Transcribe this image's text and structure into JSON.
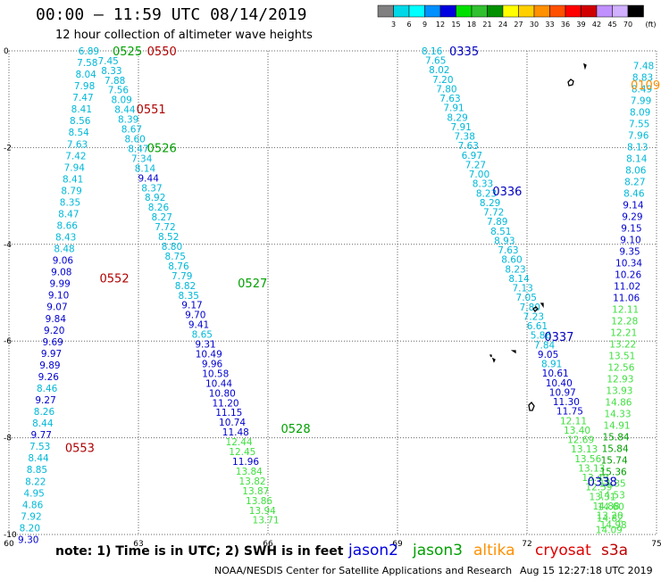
{
  "title": "00:00 – 11:59 UTC 08/14/2019",
  "subtitle": "12 hour collection of altimeter wave heights",
  "note": "note: 1) Time is in UTC; 2) SWH is in feet",
  "footer": "NOAA/NESDIS Center for Satellite Applications and Research",
  "footer_date": "Aug 15 12:27:18 UTC 2019",
  "colorbar": {
    "unit": "(ft)",
    "ticks": [
      "3",
      "6",
      "9",
      "12",
      "15",
      "18",
      "21",
      "24",
      "27",
      "30",
      "33",
      "36",
      "39",
      "42",
      "45",
      "70"
    ],
    "colors": [
      "#808080",
      "#00d8e8",
      "#00ffff",
      "#0090ff",
      "#0000e0",
      "#00e000",
      "#30c030",
      "#009000",
      "#ffff00",
      "#ffd000",
      "#ff9000",
      "#ff5000",
      "#ff0000",
      "#d00000",
      "#c090ff",
      "#d0b0ff",
      "#000000"
    ]
  },
  "satellites": [
    {
      "name": "jason2",
      "color": "#0000e0"
    },
    {
      "name": "jason3",
      "color": "#00a000"
    },
    {
      "name": "altika",
      "color": "#ff9000"
    },
    {
      "name": "cryosat",
      "color": "#e00000"
    },
    {
      "name": "s3a",
      "color": "#c00000"
    }
  ],
  "axes": {
    "lon_ticks": [
      60,
      63,
      66,
      69,
      72,
      75
    ],
    "lat_ticks": [
      0,
      -2,
      -4,
      -6,
      -8,
      -10
    ],
    "lat_labels": [
      "0",
      "-2",
      "-4",
      "-6",
      "-8",
      "-10"
    ]
  },
  "pass_labels": [
    {
      "text": "0525",
      "lon": 62.4,
      "lat": 0.0,
      "color": "#00a000"
    },
    {
      "text": "0550",
      "lon": 63.2,
      "lat": 0.0,
      "color": "#b00000"
    },
    {
      "text": "0551",
      "lon": 62.95,
      "lat": -1.2,
      "color": "#b00000"
    },
    {
      "text": "0526",
      "lon": 63.2,
      "lat": -2.0,
      "color": "#00a000"
    },
    {
      "text": "0552",
      "lon": 62.1,
      "lat": -4.7,
      "color": "#b00000"
    },
    {
      "text": "0527",
      "lon": 65.3,
      "lat": -4.8,
      "color": "#00a000"
    },
    {
      "text": "0528",
      "lon": 66.3,
      "lat": -7.8,
      "color": "#00a000"
    },
    {
      "text": "0553",
      "lon": 61.3,
      "lat": -8.2,
      "color": "#b00000"
    },
    {
      "text": "0335",
      "lon": 70.2,
      "lat": 0.0,
      "color": "#0000c0"
    },
    {
      "text": "0336",
      "lon": 71.2,
      "lat": -2.9,
      "color": "#0000c0"
    },
    {
      "text": "0337",
      "lon": 72.4,
      "lat": -5.9,
      "color": "#0000c0"
    },
    {
      "text": "0338",
      "lon": 73.4,
      "lat": -8.9,
      "color": "#0000c0"
    },
    {
      "text": "0109",
      "lon": 74.4,
      "lat": -0.7,
      "color": "#ff9000"
    }
  ],
  "tracks": [
    {
      "name": "track-a",
      "lon0": 61.85,
      "lat0": 0.0,
      "lon1": 60.45,
      "lat1": -10.1,
      "values": [
        "6.89",
        "7.58",
        "8.04",
        "7.98",
        "7.47",
        "8.41",
        "8.56",
        "8.54",
        "7.63",
        "7.42",
        "7.94",
        "8.41",
        "8.79",
        "8.35",
        "8.47",
        "8.66",
        "8.43",
        "8.48",
        "9.06",
        "9.08",
        "9.99",
        "9.10",
        "9.07",
        "9.84",
        "9.20",
        "9.69",
        "9.97",
        "9.89",
        "9.26",
        "8.46",
        "9.27",
        "8.26",
        "8.44",
        "9.77",
        "7.53",
        "8.44",
        "8.85",
        "8.22",
        "4.95",
        "4.86",
        "7.92",
        "8.20",
        "9.30"
      ],
      "colors": [
        "#00b8d8",
        "#00b8d8",
        "#00b8d8",
        "#00b8d8",
        "#00b8d8",
        "#00b8d8",
        "#00b8d8",
        "#00b8d8",
        "#00b8d8",
        "#00b8d8",
        "#00b8d8",
        "#00b8d8",
        "#00b8d8",
        "#00b8d8",
        "#00b8d8",
        "#00b8d8",
        "#00b8d8",
        "#00b8d8",
        "#0000d0",
        "#0000d0",
        "#0000d0",
        "#0000d0",
        "#0000d0",
        "#0000d0",
        "#0000d0",
        "#0000d0",
        "#0000d0",
        "#0000d0",
        "#0000d0",
        "#00b8d8",
        "#0000d0",
        "#00b8d8",
        "#00b8d8",
        "#0000d0",
        "#00b8d8",
        "#00b8d8",
        "#00b8d8",
        "#00b8d8",
        "#00b8d8",
        "#00b8d8",
        "#00b8d8",
        "#00b8d8",
        "#0000d0"
      ]
    },
    {
      "name": "track-b",
      "lon0": 62.3,
      "lat0": -0.2,
      "lon1": 65.95,
      "lat1": -9.7,
      "values": [
        "7.45",
        "8.33",
        "7.88",
        "7.56",
        "8.09",
        "8.44",
        "8.39",
        "8.67",
        "8.60",
        "8.47",
        "7.34",
        "8.14",
        "9.44",
        "8.37",
        "8.92",
        "8.26",
        "8.27",
        "7.72",
        "8.52",
        "8.80",
        "8.75",
        "8.76",
        "7.79",
        "8.82",
        "8.35",
        "9.17",
        "9.70",
        "9.41",
        "8.65",
        "9.31",
        "10.49",
        "9.96",
        "10.58",
        "10.44",
        "10.80",
        "11.20",
        "11.15",
        "10.74",
        "11.48",
        "12.44",
        "12.45",
        "11.96",
        "13.84",
        "13.82",
        "13.87",
        "13.86",
        "13.94",
        "13.71"
      ],
      "colors": [
        "#00b8d8",
        "#00b8d8",
        "#00b8d8",
        "#00b8d8",
        "#00b8d8",
        "#00b8d8",
        "#00b8d8",
        "#00b8d8",
        "#00b8d8",
        "#00b8d8",
        "#00b8d8",
        "#00b8d8",
        "#0000d0",
        "#00b8d8",
        "#00b8d8",
        "#00b8d8",
        "#00b8d8",
        "#00b8d8",
        "#00b8d8",
        "#00b8d8",
        "#00b8d8",
        "#00b8d8",
        "#00b8d8",
        "#00b8d8",
        "#00b8d8",
        "#0000d0",
        "#0000d0",
        "#0000d0",
        "#00b8d8",
        "#0000d0",
        "#0000d0",
        "#0000d0",
        "#0000d0",
        "#0000d0",
        "#0000d0",
        "#0000d0",
        "#0000d0",
        "#0000d0",
        "#0000d0",
        "#40e040",
        "#40e040",
        "#0000d0",
        "#40e040",
        "#40e040",
        "#40e040",
        "#40e040",
        "#40e040",
        "#40e040"
      ]
    },
    {
      "name": "track-c",
      "lon0": 69.8,
      "lat0": 0.0,
      "lon1": 74.0,
      "lat1": -9.8,
      "values": [
        "8.16",
        "7.65",
        "8.02",
        "7.20",
        "7.80",
        "7.63",
        "7.91",
        "8.29",
        "7.91",
        "7.38",
        "7.63",
        "6.97",
        "7.27",
        "7.00",
        "8.33",
        "8.23",
        "8.29",
        "7.72",
        "7.89",
        "8.51",
        "8.93",
        "7.63",
        "8.60",
        "8.23",
        "8.14",
        "7.13",
        "7.05",
        "7.80",
        "7.23",
        "6.61",
        "5.86",
        "7.84",
        "9.05",
        "8.91",
        "10.61",
        "10.40",
        "10.97",
        "11.30",
        "11.75",
        "12.11",
        "13.40",
        "12.69",
        "13.13",
        "13.56",
        "13.13",
        "13.49",
        "12.59",
        "13.31",
        "14.88",
        "13.20",
        "14.98"
      ],
      "colors": [
        "#00b8d8",
        "#00b8d8",
        "#00b8d8",
        "#00b8d8",
        "#00b8d8",
        "#00b8d8",
        "#00b8d8",
        "#00b8d8",
        "#00b8d8",
        "#00b8d8",
        "#00b8d8",
        "#00b8d8",
        "#00b8d8",
        "#00b8d8",
        "#00b8d8",
        "#00b8d8",
        "#00b8d8",
        "#00b8d8",
        "#00b8d8",
        "#00b8d8",
        "#00b8d8",
        "#00b8d8",
        "#00b8d8",
        "#00b8d8",
        "#00b8d8",
        "#00b8d8",
        "#00b8d8",
        "#00b8d8",
        "#00b8d8",
        "#00b8d8",
        "#00b8d8",
        "#00b8d8",
        "#0000d0",
        "#00b8d8",
        "#0000d0",
        "#0000d0",
        "#0000d0",
        "#0000d0",
        "#0000d0",
        "#40e040",
        "#40e040",
        "#40e040",
        "#40e040",
        "#40e040",
        "#40e040",
        "#40e040",
        "#40e040",
        "#40e040",
        "#40e040",
        "#40e040",
        "#40e040"
      ]
    },
    {
      "name": "track-d",
      "lon0": 74.7,
      "lat0": -0.3,
      "lon1": 73.9,
      "lat1": -9.9,
      "values": [
        "7.48",
        "8.83",
        "8.49",
        "7.99",
        "8.09",
        "7.55",
        "7.96",
        "8.13",
        "8.14",
        "8.06",
        "8.27",
        "8.46",
        "9.14",
        "9.29",
        "9.15",
        "9.10",
        "9.35",
        "10.34",
        "10.26",
        "11.02",
        "11.06",
        "12.11",
        "12.28",
        "12.21",
        "13.22",
        "13.51",
        "12.56",
        "12.93",
        "13.93",
        "14.86",
        "14.33",
        "14.91",
        "15.84",
        "15.84",
        "15.74",
        "15.36",
        "14.35",
        "14.53",
        "14.60",
        "14.82",
        "14.09"
      ],
      "colors": [
        "#00b8d8",
        "#00b8d8",
        "#00b8d8",
        "#00b8d8",
        "#00b8d8",
        "#00b8d8",
        "#00b8d8",
        "#00b8d8",
        "#00b8d8",
        "#00b8d8",
        "#00b8d8",
        "#00b8d8",
        "#0000d0",
        "#0000d0",
        "#0000d0",
        "#0000d0",
        "#0000d0",
        "#0000d0",
        "#0000d0",
        "#0000d0",
        "#0000d0",
        "#40e040",
        "#40e040",
        "#40e040",
        "#40e040",
        "#40e040",
        "#40e040",
        "#40e040",
        "#40e040",
        "#40e040",
        "#40e040",
        "#40e040",
        "#00a000",
        "#00a000",
        "#00a000",
        "#00a000",
        "#40e040",
        "#40e040",
        "#40e040",
        "#40e040",
        "#40e040"
      ]
    }
  ]
}
